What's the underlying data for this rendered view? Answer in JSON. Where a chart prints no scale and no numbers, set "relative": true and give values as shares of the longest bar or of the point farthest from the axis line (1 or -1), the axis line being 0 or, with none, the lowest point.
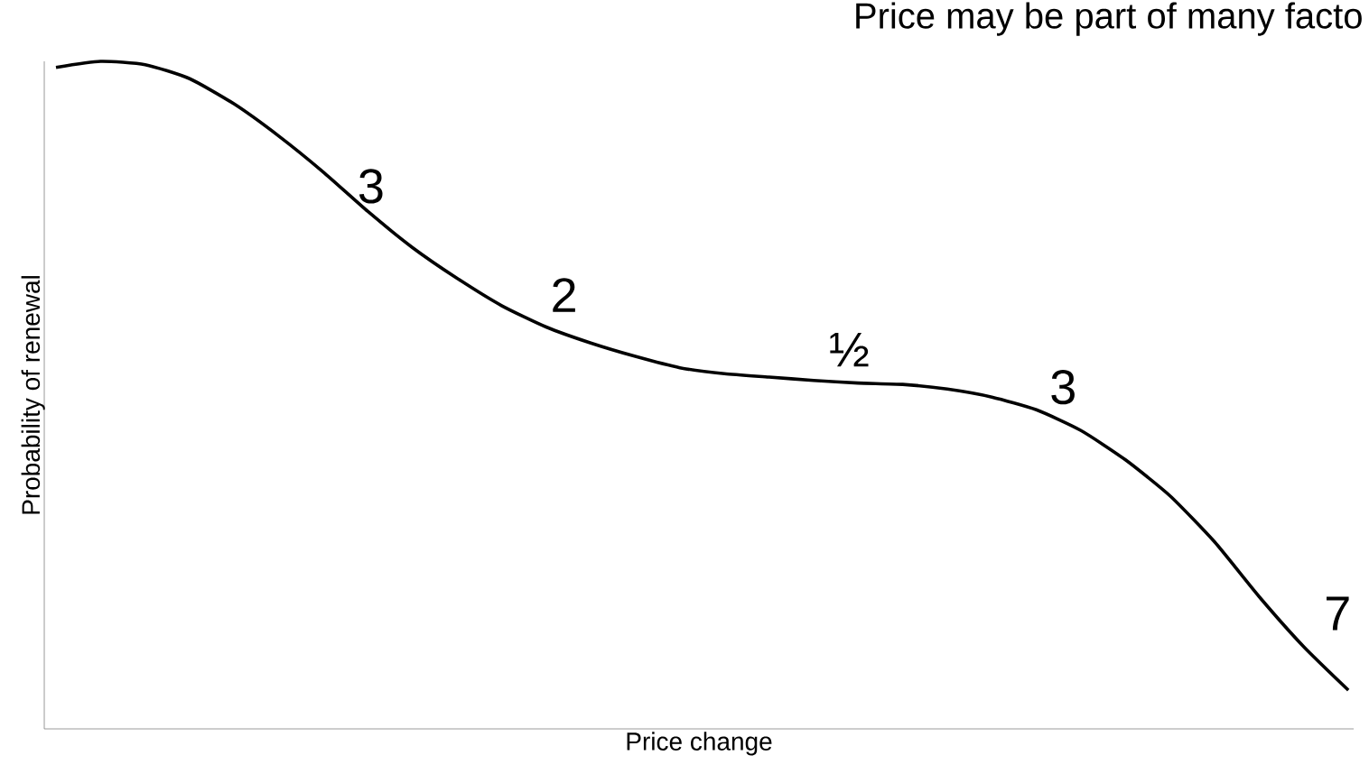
{
  "chart_data": {
    "type": "line",
    "title": "Price may be part of many facto",
    "xlabel": "Price change",
    "ylabel": "Probability of renewal",
    "relative": true,
    "color": "#000000",
    "categories": [
      null,
      null,
      null,
      null,
      null,
      null,
      null,
      null,
      null,
      null,
      null,
      null,
      null,
      null,
      null,
      null,
      null,
      null,
      null,
      null,
      null,
      null,
      null,
      null,
      null,
      null,
      null,
      null,
      null,
      null
    ],
    "values": [
      0.991,
      1.0,
      0.995,
      0.974,
      0.936,
      0.888,
      0.834,
      0.775,
      0.721,
      0.675,
      0.634,
      0.602,
      0.578,
      0.558,
      0.541,
      0.532,
      0.527,
      0.522,
      0.518,
      0.516,
      0.509,
      0.497,
      0.478,
      0.447,
      0.403,
      0.349,
      0.28,
      0.198,
      0.123,
      0.058
    ],
    "annotations": [
      "3",
      "2",
      "½",
      "3",
      "7"
    ]
  }
}
